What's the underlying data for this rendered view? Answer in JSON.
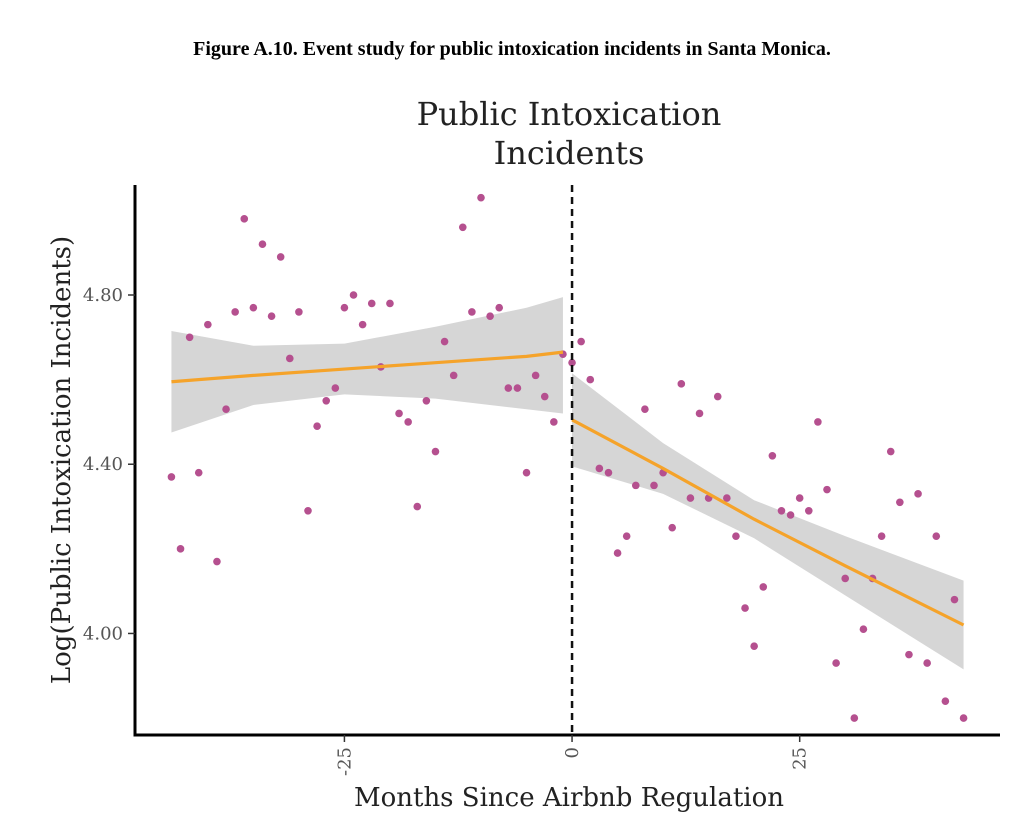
{
  "caption": "Figure A.10. Event study for public intoxication incidents in Santa Monica.",
  "chart_data": {
    "type": "scatter",
    "title": "Public Intoxication Incidents",
    "title_lines": [
      "Public Intoxication",
      "Incidents"
    ],
    "xlabel": "Months Since Airbnb Regulation",
    "ylabel": "Log(Public Intoxication Incidents)",
    "xlim": [
      -48,
      47
    ],
    "ylim": [
      3.76,
      5.06
    ],
    "x_ticks": [
      -25,
      0,
      25
    ],
    "x_tick_labels": [
      "-25",
      "0",
      "25"
    ],
    "y_ticks": [
      4.0,
      4.4,
      4.8
    ],
    "y_tick_labels": [
      "4.00",
      "4.40",
      "4.80"
    ],
    "grid": false,
    "event_line_x": 0,
    "colors": {
      "points": "#b5508f",
      "fit_line": "#f5a32a",
      "confidence_band": "#d6d6d6",
      "event_line": "#111111",
      "axis": "#000000"
    },
    "points": [
      {
        "x": -44,
        "y": 4.37
      },
      {
        "x": -43,
        "y": 4.2
      },
      {
        "x": -42,
        "y": 4.7
      },
      {
        "x": -41,
        "y": 4.38
      },
      {
        "x": -40,
        "y": 4.73
      },
      {
        "x": -39,
        "y": 4.17
      },
      {
        "x": -38,
        "y": 4.53
      },
      {
        "x": -37,
        "y": 4.76
      },
      {
        "x": -36,
        "y": 4.98
      },
      {
        "x": -35,
        "y": 4.77
      },
      {
        "x": -34,
        "y": 4.92
      },
      {
        "x": -33,
        "y": 4.75
      },
      {
        "x": -32,
        "y": 4.89
      },
      {
        "x": -31,
        "y": 4.65
      },
      {
        "x": -30,
        "y": 4.76
      },
      {
        "x": -29,
        "y": 4.29
      },
      {
        "x": -28,
        "y": 4.49
      },
      {
        "x": -27,
        "y": 4.55
      },
      {
        "x": -26,
        "y": 4.58
      },
      {
        "x": -25,
        "y": 4.77
      },
      {
        "x": -24,
        "y": 4.8
      },
      {
        "x": -23,
        "y": 4.73
      },
      {
        "x": -22,
        "y": 4.78
      },
      {
        "x": -21,
        "y": 4.63
      },
      {
        "x": -20,
        "y": 4.78
      },
      {
        "x": -19,
        "y": 4.52
      },
      {
        "x": -18,
        "y": 4.5
      },
      {
        "x": -17,
        "y": 4.3
      },
      {
        "x": -16,
        "y": 4.55
      },
      {
        "x": -15,
        "y": 4.43
      },
      {
        "x": -14,
        "y": 4.69
      },
      {
        "x": -13,
        "y": 4.61
      },
      {
        "x": -12,
        "y": 4.96
      },
      {
        "x": -11,
        "y": 4.76
      },
      {
        "x": -10,
        "y": 5.03
      },
      {
        "x": -9,
        "y": 4.75
      },
      {
        "x": -8,
        "y": 4.77
      },
      {
        "x": -7,
        "y": 4.58
      },
      {
        "x": -6,
        "y": 4.58
      },
      {
        "x": -5,
        "y": 4.38
      },
      {
        "x": -4,
        "y": 4.61
      },
      {
        "x": -3,
        "y": 4.56
      },
      {
        "x": -2,
        "y": 4.5
      },
      {
        "x": -1,
        "y": 4.66
      },
      {
        "x": 0,
        "y": 4.64
      },
      {
        "x": 1,
        "y": 4.69
      },
      {
        "x": 2,
        "y": 4.6
      },
      {
        "x": 3,
        "y": 4.39
      },
      {
        "x": 4,
        "y": 4.38
      },
      {
        "x": 5,
        "y": 4.19
      },
      {
        "x": 6,
        "y": 4.23
      },
      {
        "x": 7,
        "y": 4.35
      },
      {
        "x": 8,
        "y": 4.53
      },
      {
        "x": 9,
        "y": 4.35
      },
      {
        "x": 10,
        "y": 4.38
      },
      {
        "x": 11,
        "y": 4.25
      },
      {
        "x": 12,
        "y": 4.59
      },
      {
        "x": 13,
        "y": 4.32
      },
      {
        "x": 14,
        "y": 4.52
      },
      {
        "x": 15,
        "y": 4.32
      },
      {
        "x": 16,
        "y": 4.56
      },
      {
        "x": 17,
        "y": 4.32
      },
      {
        "x": 18,
        "y": 4.23
      },
      {
        "x": 19,
        "y": 4.06
      },
      {
        "x": 20,
        "y": 3.97
      },
      {
        "x": 21,
        "y": 4.11
      },
      {
        "x": 22,
        "y": 4.42
      },
      {
        "x": 23,
        "y": 4.29
      },
      {
        "x": 24,
        "y": 4.28
      },
      {
        "x": 25,
        "y": 4.32
      },
      {
        "x": 26,
        "y": 4.29
      },
      {
        "x": 27,
        "y": 4.5
      },
      {
        "x": 28,
        "y": 4.34
      },
      {
        "x": 29,
        "y": 3.93
      },
      {
        "x": 30,
        "y": 4.13
      },
      {
        "x": 31,
        "y": 3.8
      },
      {
        "x": 32,
        "y": 4.01
      },
      {
        "x": 33,
        "y": 4.13
      },
      {
        "x": 34,
        "y": 4.23
      },
      {
        "x": 35,
        "y": 4.43
      },
      {
        "x": 36,
        "y": 4.31
      },
      {
        "x": 37,
        "y": 3.95
      },
      {
        "x": 38,
        "y": 4.33
      },
      {
        "x": 39,
        "y": 3.93
      },
      {
        "x": 40,
        "y": 4.23
      },
      {
        "x": 41,
        "y": 3.84
      },
      {
        "x": 42,
        "y": 4.08
      },
      {
        "x": 43,
        "y": 3.8
      }
    ],
    "fits": [
      {
        "x": [
          -44,
          -35,
          -25,
          -15,
          -5,
          -1
        ],
        "y": [
          4.595,
          4.61,
          4.625,
          4.64,
          4.655,
          4.665
        ],
        "lower": [
          4.475,
          4.54,
          4.565,
          4.555,
          4.53,
          4.52
        ],
        "upper": [
          4.715,
          4.68,
          4.685,
          4.725,
          4.77,
          4.795
        ]
      },
      {
        "x": [
          0,
          10,
          20,
          30,
          43
        ],
        "y": [
          4.505,
          4.39,
          4.27,
          4.16,
          4.02
        ],
        "lower": [
          4.395,
          4.33,
          4.225,
          4.09,
          3.915
        ],
        "upper": [
          4.615,
          4.45,
          4.315,
          4.23,
          4.125
        ]
      }
    ]
  }
}
